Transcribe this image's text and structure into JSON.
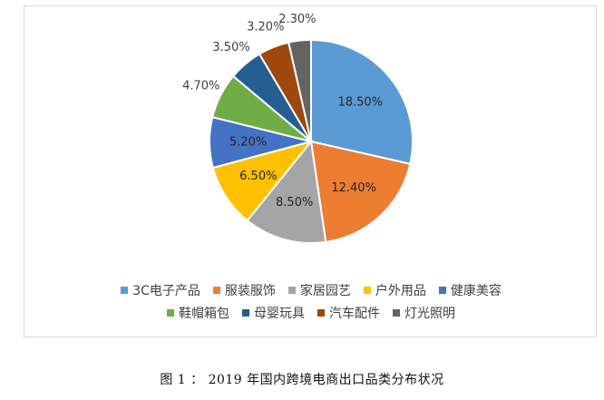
{
  "caption": "图 1 ： 2019 年国内跨境电商出口品类分布状况",
  "chart_data": {
    "type": "pie",
    "categories": [
      "3C电子产品",
      "服装服饰",
      "家居园艺",
      "户外用品",
      "健康美容",
      "鞋帽箱包",
      "母婴玩具",
      "汽车配件",
      "灯光照明"
    ],
    "values": [
      18.5,
      12.4,
      8.5,
      6.5,
      5.2,
      4.7,
      3.5,
      3.2,
      2.3
    ],
    "labels": [
      "18.50%",
      "12.40%",
      "8.50%",
      "6.50%",
      "5.20%",
      "4.70%",
      "3.50%",
      "3.20%",
      "2.30%"
    ],
    "colors": [
      "#5B9BD5",
      "#ED7D31",
      "#A5A5A5",
      "#FFC000",
      "#4472C4",
      "#70AD47",
      "#255E91",
      "#9E480E",
      "#636363"
    ],
    "legend_position": "bottom",
    "start_angle": "12 o'clock, clockwise"
  }
}
